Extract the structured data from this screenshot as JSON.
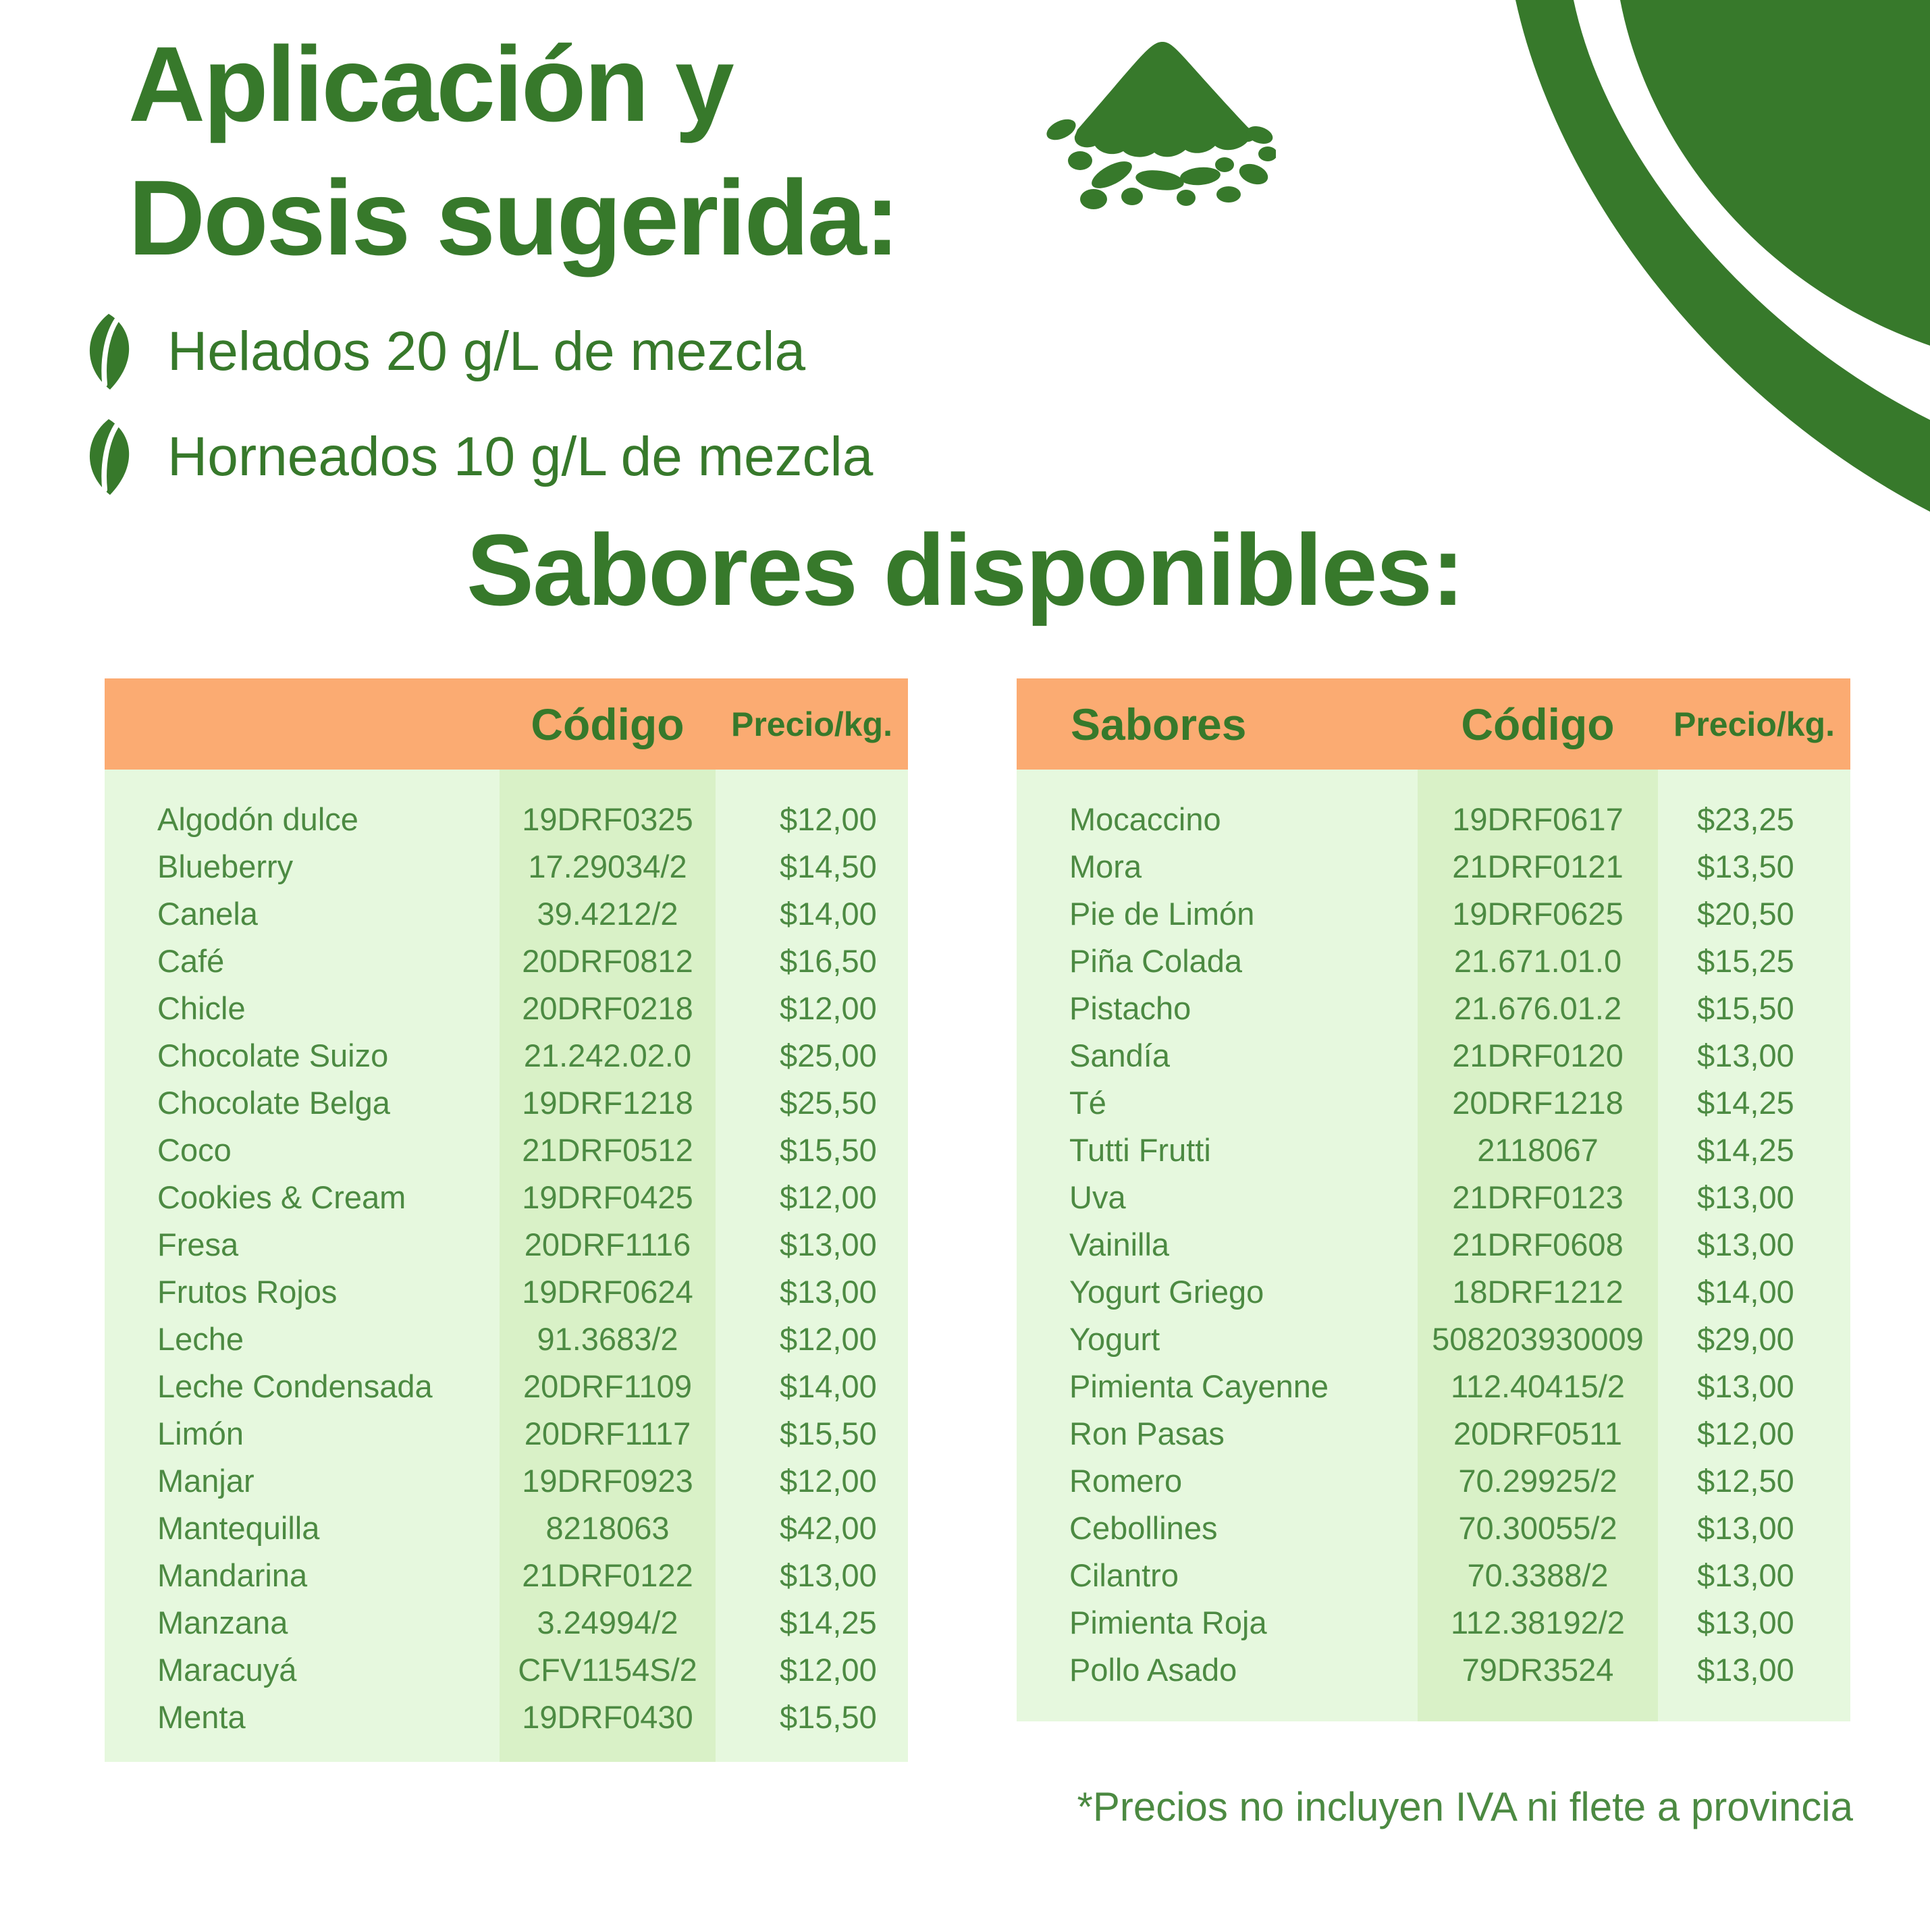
{
  "page": {
    "title_line1": "Aplicación y",
    "title_line2": "Dosis sugerida:",
    "bullets": [
      {
        "icon": "leaf-icon",
        "text": "Helados 20 g/L de mezcla"
      },
      {
        "icon": "leaf-icon",
        "text": "Horneados 10 g/L de mezcla"
      }
    ],
    "section_title": "Sabores disponibles:",
    "footnote": "*Precios no incluyen IVA ni flete a provincia"
  },
  "icons": {
    "powder_pile": "powder-pile-icon",
    "corner_decoration": "corner-swoosh-decoration",
    "bullet": "leaf-icon"
  },
  "colors": {
    "dark_green": "#37792B",
    "table_text_green": "#4C8A42",
    "header_orange": "#FBAB72",
    "table_bg_light_green": "#E6F8DE",
    "code_band_green": "#D9F1C7",
    "background": "#FFFFFF"
  },
  "tables": {
    "left": {
      "headers": {
        "flavor": "",
        "code": "Código",
        "price": "Precio/kg."
      },
      "rows": [
        {
          "flavor": "Algodón dulce",
          "code": "19DRF0325",
          "price": "$12,00"
        },
        {
          "flavor": "Blueberry",
          "code": "17.29034/2",
          "price": "$14,50"
        },
        {
          "flavor": "Canela",
          "code": "39.4212/2",
          "price": "$14,00"
        },
        {
          "flavor": "Café",
          "code": "20DRF0812",
          "price": "$16,50"
        },
        {
          "flavor": "Chicle",
          "code": "20DRF0218",
          "price": "$12,00"
        },
        {
          "flavor": "Chocolate Suizo",
          "code": "21.242.02.0",
          "price": "$25,00"
        },
        {
          "flavor": "Chocolate Belga",
          "code": "19DRF1218",
          "price": "$25,50"
        },
        {
          "flavor": "Coco",
          "code": "21DRF0512",
          "price": "$15,50"
        },
        {
          "flavor": "Cookies & Cream",
          "code": "19DRF0425",
          "price": "$12,00"
        },
        {
          "flavor": "Fresa",
          "code": "20DRF1116",
          "price": "$13,00"
        },
        {
          "flavor": "Frutos Rojos",
          "code": "19DRF0624",
          "price": "$13,00"
        },
        {
          "flavor": "Leche",
          "code": "91.3683/2",
          "price": "$12,00"
        },
        {
          "flavor": "Leche Condensada",
          "code": "20DRF1109",
          "price": "$14,00"
        },
        {
          "flavor": "Limón",
          "code": "20DRF1117",
          "price": "$15,50"
        },
        {
          "flavor": "Manjar",
          "code": "19DRF0923",
          "price": "$12,00"
        },
        {
          "flavor": "Mantequilla",
          "code": "8218063",
          "price": "$42,00"
        },
        {
          "flavor": "Mandarina",
          "code": "21DRF0122",
          "price": "$13,00"
        },
        {
          "flavor": "Manzana",
          "code": "3.24994/2",
          "price": "$14,25"
        },
        {
          "flavor": "Maracuyá",
          "code": "CFV1154S/2",
          "price": "$12,00"
        },
        {
          "flavor": "Menta",
          "code": "19DRF0430",
          "price": "$15,50"
        }
      ]
    },
    "right": {
      "headers": {
        "flavor": "Sabores",
        "code": "Código",
        "price": "Precio/kg."
      },
      "rows": [
        {
          "flavor": "Mocaccino",
          "code": "19DRF0617",
          "price": "$23,25"
        },
        {
          "flavor": "Mora",
          "code": "21DRF0121",
          "price": "$13,50"
        },
        {
          "flavor": "Pie de Limón",
          "code": "19DRF0625",
          "price": "$20,50"
        },
        {
          "flavor": "Piña Colada",
          "code": "21.671.01.0",
          "price": "$15,25"
        },
        {
          "flavor": "Pistacho",
          "code": "21.676.01.2",
          "price": "$15,50"
        },
        {
          "flavor": "Sandía",
          "code": "21DRF0120",
          "price": "$13,00"
        },
        {
          "flavor": "Té",
          "code": "20DRF1218",
          "price": "$14,25"
        },
        {
          "flavor": "Tutti Frutti",
          "code": "2118067",
          "price": "$14,25"
        },
        {
          "flavor": "Uva",
          "code": "21DRF0123",
          "price": "$13,00"
        },
        {
          "flavor": "Vainilla",
          "code": "21DRF0608",
          "price": "$13,00"
        },
        {
          "flavor": "Yogurt Griego",
          "code": "18DRF1212",
          "price": "$14,00"
        },
        {
          "flavor": "Yogurt",
          "code": "508203930009",
          "price": "$29,00"
        },
        {
          "flavor": "Pimienta Cayenne",
          "code": "112.40415/2",
          "price": "$13,00"
        },
        {
          "flavor": "Ron Pasas",
          "code": "20DRF0511",
          "price": "$12,00"
        },
        {
          "flavor": "Romero",
          "code": "70.29925/2",
          "price": "$12,50"
        },
        {
          "flavor": "Cebollines",
          "code": "70.30055/2",
          "price": "$13,00"
        },
        {
          "flavor": "Cilantro",
          "code": "70.3388/2",
          "price": "$13,00"
        },
        {
          "flavor": "Pimienta Roja",
          "code": "112.38192/2",
          "price": "$13,00"
        },
        {
          "flavor": "Pollo Asado",
          "code": "79DR3524",
          "price": "$13,00"
        }
      ]
    }
  }
}
